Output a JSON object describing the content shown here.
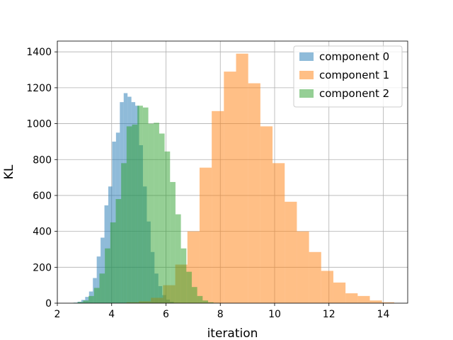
{
  "chart_data": {
    "type": "bar",
    "subtype": "overlaid-histogram",
    "title": "",
    "xlabel": "iteration",
    "ylabel": "KL",
    "xlim": [
      2.0,
      14.9
    ],
    "ylim": [
      0,
      1460
    ],
    "x_ticks": [
      2,
      4,
      6,
      8,
      10,
      12,
      14
    ],
    "x_tick_labels": [
      "2",
      "4",
      "6",
      "8",
      "10",
      "12",
      "14"
    ],
    "y_ticks": [
      0,
      200,
      400,
      600,
      800,
      1000,
      1200,
      1400
    ],
    "y_tick_labels": [
      "0",
      "200",
      "400",
      "600",
      "800",
      "1000",
      "1200",
      "1400"
    ],
    "grid": true,
    "legend_position": "top-right",
    "series": [
      {
        "name": "component 0",
        "color": "#1f77b4",
        "opacity": 0.5,
        "bin_start": 2.6,
        "bin_width": 0.1418,
        "counts": [
          3,
          8,
          18,
          35,
          65,
          140,
          260,
          365,
          545,
          650,
          900,
          950,
          1120,
          1170,
          1150,
          1120,
          1100,
          880,
          650,
          455,
          285,
          165,
          95,
          45,
          20,
          8,
          2
        ]
      },
      {
        "name": "component 1",
        "color": "#ff7f0e",
        "opacity": 0.5,
        "bin_start": 4.55,
        "bin_width": 0.4478,
        "counts": [
          5,
          10,
          30,
          100,
          215,
          400,
          755,
          1070,
          1290,
          1390,
          1225,
          985,
          780,
          565,
          400,
          285,
          180,
          115,
          55,
          40,
          15,
          5
        ]
      },
      {
        "name": "component 2",
        "color": "#2ca02c",
        "opacity": 0.5,
        "bin_start": 2.55,
        "bin_width": 0.2,
        "counts": [
          2,
          6,
          15,
          40,
          85,
          165,
          305,
          450,
          580,
          780,
          985,
          995,
          1100,
          1090,
          1000,
          1005,
          945,
          845,
          675,
          495,
          305,
          175,
          90,
          40,
          15,
          5,
          2
        ]
      }
    ]
  }
}
